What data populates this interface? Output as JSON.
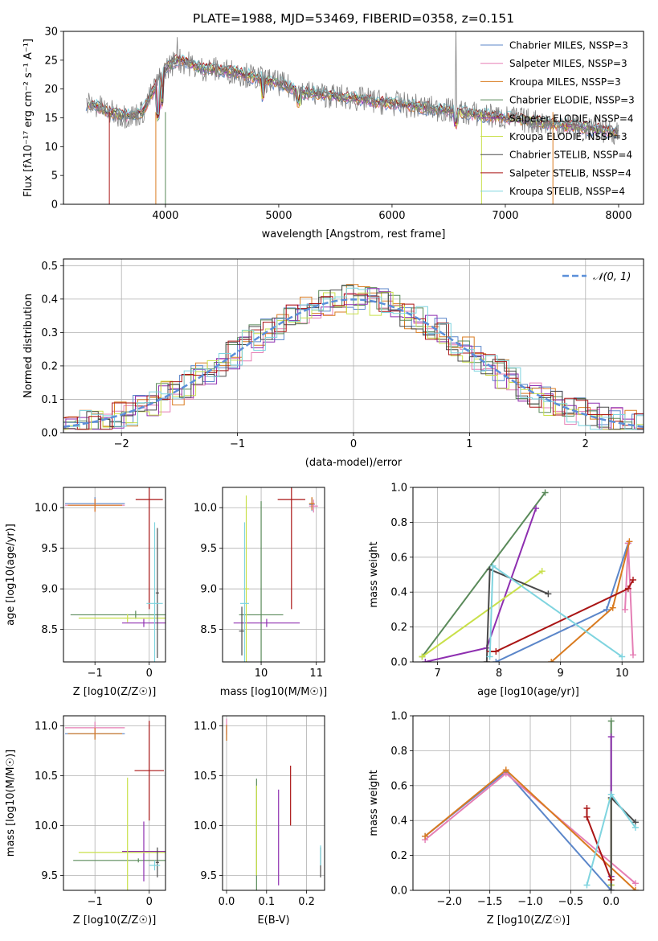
{
  "chart_data": [
    {
      "type": "line",
      "title": "PLATE=1988, MJD=53469, FIBERID=0358, z=0.151",
      "xlabel": "wavelength [Angstrom, rest frame]",
      "ylabel": "Flux [fλ10⁻¹⁷ erg cm⁻² s⁻¹ A⁻¹]",
      "xlim": [
        3100,
        8220
      ],
      "ylim": [
        0,
        30
      ],
      "xticks": [
        4000,
        5000,
        6000,
        7000,
        8000
      ],
      "yticks": [
        0,
        5,
        10,
        15,
        20,
        25,
        30
      ],
      "legend_position": "top-right",
      "series": [
        {
          "name": "Chabrier MILES, NSSP=3",
          "color": "#5b86c9"
        },
        {
          "name": "Salpeter MILES, NSSP=3",
          "color": "#e57fb5"
        },
        {
          "name": "Kroupa MILES, NSSP=3",
          "color": "#d97b20"
        },
        {
          "name": "Chabrier ELODIE, NSSP=3",
          "color": "#5a8a5a"
        },
        {
          "name": "Salpeter ELODIE, NSSP=4",
          "color": "#8e2fb0"
        },
        {
          "name": "Kroupa ELODIE, NSSP=3",
          "color": "#c9e04a"
        },
        {
          "name": "Chabrier STELIB, NSSP=4",
          "color": "#4a4a4a"
        },
        {
          "name": "Salpeter STELIB, NSSP=4",
          "color": "#aa1515"
        },
        {
          "name": "Kroupa STELIB, NSSP=4",
          "color": "#7fd4df"
        }
      ],
      "data_color": "#808080",
      "spectrum_x": [
        3300,
        3400,
        3500,
        3600,
        3700,
        3800,
        3900,
        4000,
        4100,
        4200,
        4300,
        4400,
        4600,
        4800,
        5000,
        5200,
        5400,
        5600,
        5800,
        6000,
        6200,
        6400,
        6600,
        6800,
        7000,
        7200,
        7400,
        7600,
        7800,
        8000
      ],
      "spectrum_y": [
        17.5,
        17.0,
        16.0,
        15.5,
        15.3,
        16.0,
        20.0,
        23.5,
        25.0,
        24.5,
        23.5,
        23.5,
        23.0,
        22.0,
        21.0,
        19.5,
        19.0,
        18.5,
        18.0,
        17.5,
        17.0,
        16.5,
        16.0,
        15.5,
        15.0,
        14.5,
        14.0,
        13.5,
        13.0,
        12.5
      ]
    },
    {
      "type": "histogram",
      "xlabel": "(data-model)/error",
      "ylabel": "Normed distribution",
      "xlim": [
        -2.5,
        2.5
      ],
      "ylim": [
        0,
        0.52
      ],
      "xticks": [
        -2,
        -1,
        0,
        1,
        2
      ],
      "yticks": [
        0.0,
        0.1,
        0.2,
        0.3,
        0.4,
        0.5
      ],
      "grid": true,
      "legend_position": "top-right",
      "reference": {
        "name": "𝒩(0, 1)",
        "mean": 0,
        "sigma": 1,
        "color": "#5b8fd9"
      },
      "bin_width": 0.1,
      "series_colors": [
        "#5b86c9",
        "#e57fb5",
        "#d97b20",
        "#5a8a5a",
        "#8e2fb0",
        "#c9e04a",
        "#4a4a4a",
        "#aa1515",
        "#7fd4df"
      ]
    },
    {
      "type": "scatter",
      "xlabel": "Z [log10(Z/Z☉)]",
      "ylabel": "age  [log10(age/yr)]",
      "xlim": [
        -1.58,
        0.3
      ],
      "ylim": [
        8.1,
        10.25
      ],
      "xticks": [
        -1,
        0
      ],
      "yticks": [
        8.5,
        9.0,
        9.5,
        10.0
      ],
      "grid": true,
      "points": [
        {
          "x": -1.0,
          "y": 10.05,
          "xerr": 0.55,
          "yerr": 0.08,
          "color": "#5b86c9"
        },
        {
          "x": -1.0,
          "y": 10.03,
          "xerr": 0.55,
          "yerr": 0.08,
          "color": "#e57fb5"
        },
        {
          "x": -1.0,
          "y": 10.03,
          "xerr": 0.5,
          "yerr": 0.08,
          "color": "#d97b20"
        },
        {
          "x": -0.25,
          "y": 8.68,
          "xerr": 1.2,
          "yerr": 0.05,
          "color": "#5a8a5a"
        },
        {
          "x": -0.1,
          "y": 8.58,
          "xerr": 0.4,
          "yerr": 0.05,
          "color": "#8e2fb0"
        },
        {
          "x": -0.4,
          "y": 8.64,
          "xerr": 0.9,
          "yerr": 0.05,
          "color": "#c9e04a"
        },
        {
          "x": 0.15,
          "y": 8.95,
          "xerr": 0.03,
          "yerr": 0.8,
          "color": "#4a4a4a"
        },
        {
          "x": 0.0,
          "y": 10.1,
          "xerr": 0.25,
          "yerr": 1.35,
          "color": "#aa1515"
        },
        {
          "x": 0.1,
          "y": 8.82,
          "xerr": 0.15,
          "yerr": 1.0,
          "color": "#7fd4df"
        }
      ]
    },
    {
      "type": "scatter",
      "xlabel": "mass [log10(M/M☉)]",
      "ylabel": "",
      "xlim": [
        9.3,
        11.15
      ],
      "ylim": [
        8.1,
        10.25
      ],
      "xticks": [
        10,
        11
      ],
      "yticks": [
        8.5,
        9.0,
        9.5,
        10.0
      ],
      "grid": true,
      "points": [
        {
          "x": 10.92,
          "y": 10.04,
          "xerr": 0.05,
          "yerr": 0.08,
          "color": "#5b86c9"
        },
        {
          "x": 10.95,
          "y": 10.02,
          "xerr": 0.08,
          "yerr": 0.08,
          "color": "#e57fb5"
        },
        {
          "x": 10.92,
          "y": 10.05,
          "xerr": 0.05,
          "yerr": 0.08,
          "color": "#d97b20"
        },
        {
          "x": 10.0,
          "y": 8.68,
          "xerr": 0.4,
          "yerr": 1.4,
          "color": "#5a8a5a"
        },
        {
          "x": 10.1,
          "y": 8.58,
          "xerr": 0.6,
          "yerr": 0.05,
          "color": "#8e2fb0"
        },
        {
          "x": 9.73,
          "y": 9.0,
          "xerr": 0.05,
          "yerr": 1.15,
          "color": "#c9e04a"
        },
        {
          "x": 9.65,
          "y": 8.48,
          "xerr": 0.05,
          "yerr": 0.3,
          "color": "#4a4a4a"
        },
        {
          "x": 10.55,
          "y": 10.1,
          "xerr": 0.25,
          "yerr": 1.35,
          "color": "#aa1515"
        },
        {
          "x": 9.7,
          "y": 8.82,
          "xerr": 0.08,
          "yerr": 1.0,
          "color": "#7fd4df"
        }
      ]
    },
    {
      "type": "line",
      "xlabel": "age  [log10(age/yr)]",
      "ylabel": "mass weight",
      "xlim": [
        6.6,
        10.35
      ],
      "ylim": [
        0,
        1
      ],
      "xticks": [
        7,
        8,
        9,
        10
      ],
      "yticks": [
        0.0,
        0.2,
        0.4,
        0.6,
        0.8,
        1.0
      ],
      "grid": true,
      "series": [
        {
          "color": "#5b86c9",
          "x": [
            7.95,
            9.75,
            10.1
          ],
          "y": [
            0.0,
            0.3,
            0.68
          ]
        },
        {
          "color": "#e57fb5",
          "x": [
            10.05,
            10.1,
            10.18
          ],
          "y": [
            0.3,
            0.68,
            0.04
          ]
        },
        {
          "color": "#d97b20",
          "x": [
            8.85,
            9.85,
            10.12
          ],
          "y": [
            0.0,
            0.31,
            0.69
          ]
        },
        {
          "color": "#5a8a5a",
          "x": [
            6.75,
            8.75
          ],
          "y": [
            0.03,
            0.97
          ]
        },
        {
          "color": "#8e2fb0",
          "x": [
            6.8,
            7.8,
            8.6
          ],
          "y": [
            0.0,
            0.08,
            0.88
          ]
        },
        {
          "color": "#c9e04a",
          "x": [
            6.75,
            8.7
          ],
          "y": [
            0.03,
            0.52
          ]
        },
        {
          "color": "#4a4a4a",
          "x": [
            7.8,
            7.85,
            8.8
          ],
          "y": [
            0.0,
            0.53,
            0.39
          ]
        },
        {
          "color": "#aa1515",
          "x": [
            7.85,
            7.95,
            10.1,
            10.18
          ],
          "y": [
            0.06,
            0.06,
            0.42,
            0.47
          ]
        },
        {
          "color": "#7fd4df",
          "x": [
            7.85,
            7.9,
            10.0
          ],
          "y": [
            0.03,
            0.55,
            0.03
          ]
        }
      ]
    },
    {
      "type": "scatter",
      "xlabel": "Z [log10(Z/Z☉)]",
      "ylabel": "mass [log10(M/M☉)]",
      "xlim": [
        -1.58,
        0.3
      ],
      "ylim": [
        9.35,
        11.1
      ],
      "xticks": [
        -1,
        0
      ],
      "yticks": [
        9.5,
        10.0,
        10.5,
        11.0
      ],
      "grid": true,
      "points": [
        {
          "x": -1.0,
          "y": 10.92,
          "xerr": 0.55,
          "yerr": 0.05,
          "color": "#5b86c9"
        },
        {
          "x": -1.0,
          "y": 10.98,
          "xerr": 0.55,
          "yerr": 0.06,
          "color": "#e57fb5"
        },
        {
          "x": -1.0,
          "y": 10.92,
          "xerr": 0.5,
          "yerr": 0.06,
          "color": "#d97b20"
        },
        {
          "x": -0.2,
          "y": 9.65,
          "xerr": 1.2,
          "yerr": 0.02,
          "color": "#5a8a5a"
        },
        {
          "x": -0.1,
          "y": 9.74,
          "xerr": 0.4,
          "yerr": 0.3,
          "color": "#8e2fb0"
        },
        {
          "x": -0.4,
          "y": 9.73,
          "xerr": 0.9,
          "yerr": 0.75,
          "color": "#c9e04a"
        },
        {
          "x": 0.15,
          "y": 9.63,
          "xerr": 0.03,
          "yerr": 0.15,
          "color": "#4a4a4a"
        },
        {
          "x": 0.0,
          "y": 10.55,
          "xerr": 0.27,
          "yerr": 0.5,
          "color": "#aa1515"
        },
        {
          "x": 0.1,
          "y": 9.6,
          "xerr": 0.1,
          "yerr": 0.05,
          "color": "#7fd4df"
        }
      ]
    },
    {
      "type": "scatter",
      "xlabel": "E(B-V)",
      "ylabel": "",
      "xlim": [
        -0.01,
        0.245
      ],
      "ylim": [
        9.35,
        11.1
      ],
      "xticks": [
        0.0,
        0.1,
        0.2
      ],
      "yticks": [
        9.5,
        10.0,
        10.5,
        11.0
      ],
      "grid": true,
      "points": [
        {
          "x": 0.0,
          "y": 10.93,
          "yerr": 0.08,
          "color": "#5b86c9"
        },
        {
          "x": 0.0,
          "y": 10.99,
          "yerr": 0.08,
          "color": "#e57fb5"
        },
        {
          "x": 0.0,
          "y": 10.93,
          "yerr": 0.08,
          "color": "#d97b20"
        },
        {
          "x": 0.075,
          "y": 9.9,
          "yerr": 0.57,
          "color": "#5a8a5a"
        },
        {
          "x": 0.13,
          "y": 9.88,
          "yerr": 0.48,
          "color": "#8e2fb0"
        },
        {
          "x": 0.075,
          "y": 9.95,
          "yerr": 0.45,
          "color": "#c9e04a"
        },
        {
          "x": 0.235,
          "y": 9.63,
          "yerr": 0.15,
          "color": "#4a4a4a"
        },
        {
          "x": 0.16,
          "y": 10.3,
          "yerr": 0.3,
          "color": "#aa1515"
        },
        {
          "x": 0.235,
          "y": 9.7,
          "yerr": 0.1,
          "color": "#7fd4df"
        }
      ]
    },
    {
      "type": "line",
      "xlabel": "Z [log10(Z/Z☉)]",
      "ylabel": "mass weight",
      "xlim": [
        -2.45,
        0.4
      ],
      "ylim": [
        0,
        1
      ],
      "xticks": [
        -2.0,
        -1.5,
        -1.0,
        -0.5,
        0.0
      ],
      "yticks": [
        0.0,
        0.2,
        0.4,
        0.6,
        0.8,
        1.0
      ],
      "grid": true,
      "series": [
        {
          "color": "#5b86c9",
          "x": [
            -2.3,
            -1.3,
            0.0
          ],
          "y": [
            0.31,
            0.68,
            0.0
          ]
        },
        {
          "color": "#e57fb5",
          "x": [
            -2.3,
            -1.3,
            0.3
          ],
          "y": [
            0.29,
            0.67,
            0.04
          ]
        },
        {
          "color": "#d97b20",
          "x": [
            -2.3,
            -1.3,
            0.3
          ],
          "y": [
            0.31,
            0.69,
            0.0
          ]
        },
        {
          "color": "#5a8a5a",
          "x": [
            0.0,
            0.0
          ],
          "y": [
            0.03,
            0.97
          ]
        },
        {
          "color": "#8e2fb0",
          "x": [
            0.0,
            0.0
          ],
          "y": [
            0.08,
            0.88
          ]
        },
        {
          "color": "#c9e04a",
          "x": [
            0.0,
            0.0
          ],
          "y": [
            0.03,
            0.52
          ]
        },
        {
          "color": "#4a4a4a",
          "x": [
            0.0,
            0.0,
            0.3
          ],
          "y": [
            0.0,
            0.53,
            0.39
          ]
        },
        {
          "color": "#aa1515",
          "x": [
            -0.3,
            -0.3,
            0.0
          ],
          "y": [
            0.47,
            0.42,
            0.06
          ]
        },
        {
          "color": "#7fd4df",
          "x": [
            -0.3,
            0.0,
            0.3
          ],
          "y": [
            0.03,
            0.55,
            0.36
          ]
        }
      ]
    }
  ]
}
